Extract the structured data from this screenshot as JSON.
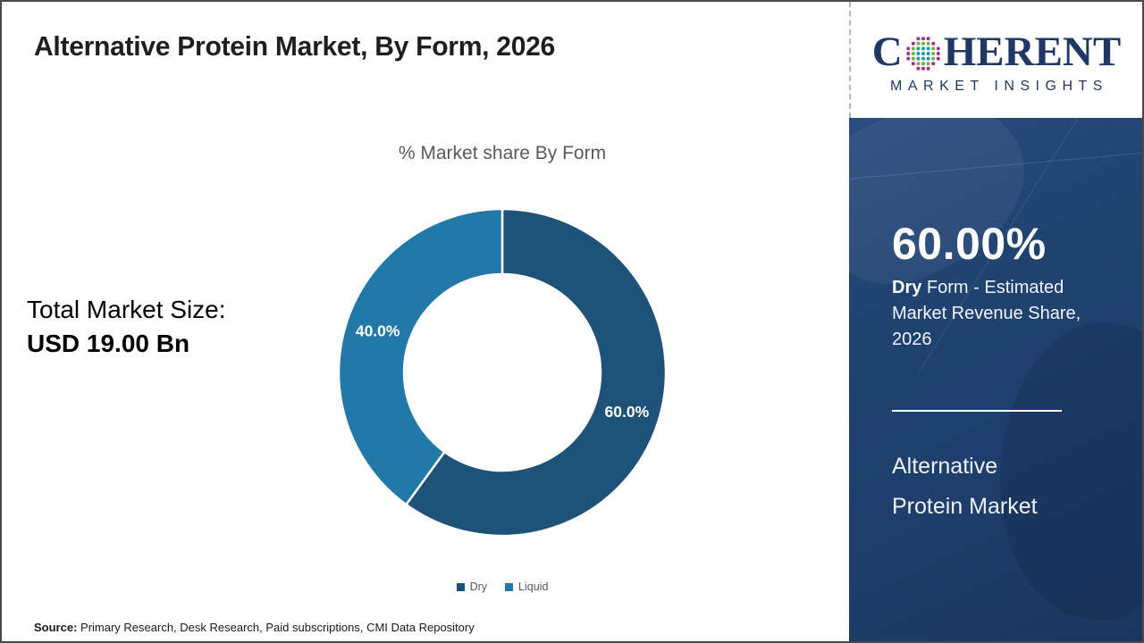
{
  "page": {
    "title": "Alternative Protein Market, By Form, 2026",
    "source_label": "Source:",
    "source_text": " Primary Research, Desk Research, Paid subscriptions, CMI Data Repository"
  },
  "logo": {
    "word_start": "C",
    "word_end": "HERENT",
    "subtitle": "MARKET INSIGHTS",
    "navy": "#1f3864",
    "dot_teal": "#1b9aaa",
    "dot_green": "#6cb33f",
    "dot_magenta": "#a82c8a"
  },
  "left_panel": {
    "total_label": "Total Market Size:",
    "total_value": "USD 19.00 Bn"
  },
  "chart_data": {
    "type": "pie",
    "donut": true,
    "title": "% Market share By Form",
    "categories": [
      "Dry",
      "Liquid"
    ],
    "values": [
      60.0,
      40.0
    ],
    "slice_labels": [
      "60.0%",
      "40.0%"
    ],
    "colors": [
      "#1f5278",
      "#2279a8"
    ],
    "start_angle_deg": 0,
    "direction": "clockwise",
    "outer_radius": 183,
    "inner_radius": 110,
    "legend_position": "bottom"
  },
  "sidebar": {
    "stat_value": "60.00%",
    "stat_desc_bold": "Dry",
    "stat_desc_rest": " Form - Estimated Market Revenue Share, 2026",
    "market_name_line1": "Alternative",
    "market_name_line2": "Protein Market",
    "background_color": "#1e3f6d"
  }
}
